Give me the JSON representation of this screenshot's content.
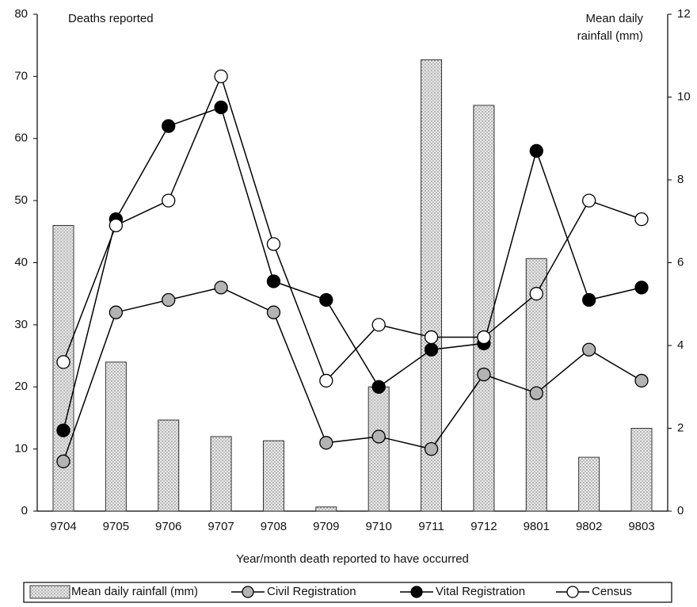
{
  "chart_data": {
    "type": "combo",
    "ylabel": "Deaths reported",
    "y2label": [
      "Mean daily",
      "rainfall (mm)"
    ],
    "xlabel": "Year/month death reported to have occurred",
    "categories": [
      "9704",
      "9705",
      "9706",
      "9707",
      "9708",
      "9709",
      "9710",
      "9711",
      "9712",
      "9801",
      "9802",
      "9803"
    ],
    "ylim": [
      0,
      80
    ],
    "yticks": [
      0,
      10,
      20,
      30,
      40,
      50,
      60,
      70,
      80
    ],
    "y2lim": [
      0,
      12
    ],
    "y2ticks": [
      0,
      2,
      4,
      6,
      8,
      10,
      12
    ],
    "series": [
      {
        "name": "Mean daily rainfall (mm)",
        "type": "bar",
        "axis": "y2",
        "color": "#d9d9d9",
        "values": [
          6.9,
          3.6,
          2.2,
          1.8,
          1.7,
          0.1,
          3.0,
          10.9,
          9.8,
          6.1,
          1.3,
          2.0
        ]
      },
      {
        "name": "Civil Registration",
        "type": "line",
        "color": "#b3b3b3",
        "values": [
          8,
          32,
          34,
          36,
          32,
          11,
          12,
          10,
          22,
          19,
          26,
          21
        ]
      },
      {
        "name": "Vital Registration",
        "type": "line",
        "color": "#000000",
        "values": [
          13,
          47,
          62,
          65,
          37,
          34,
          20,
          26,
          27,
          58,
          34,
          36
        ]
      },
      {
        "name": "Census",
        "type": "line",
        "color": "#ffffff",
        "values": [
          24,
          46,
          50,
          70,
          43,
          21,
          30,
          28,
          28,
          35,
          50,
          47
        ]
      }
    ]
  }
}
